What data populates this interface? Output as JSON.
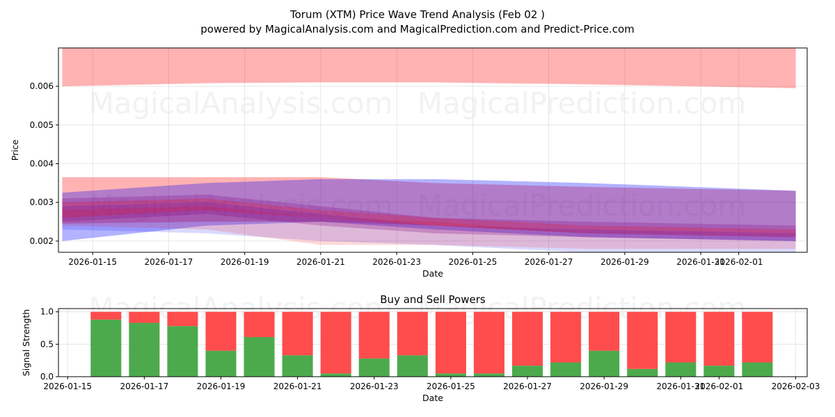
{
  "title_line1": "Torum (XTM) Price Wave Trend Analysis (Feb 02 )",
  "title_line2": "powered by MagicalAnalysis.com and MagicalPrediction.com and Predict-Price.com",
  "watermarks": [
    "MagicalAnalysis.com",
    "MagicalPrediction.com"
  ],
  "chart_data": [
    {
      "type": "area",
      "title": "",
      "xlabel": "Date",
      "ylabel": "Price",
      "xlim": [
        "2026-01-14.1",
        "2026-02-02.8"
      ],
      "ylim": [
        0.00171,
        0.00699
      ],
      "grid": true,
      "yticks": [
        0.002,
        0.003,
        0.004,
        0.005,
        0.006
      ],
      "ytick_labels": [
        "0.002",
        "0.003",
        "0.004",
        "0.005",
        "0.006"
      ],
      "xticks": [
        "2026-01-15",
        "2026-01-17",
        "2026-01-19",
        "2026-01-21",
        "2026-01-23",
        "2026-01-25",
        "2026-01-27",
        "2026-01-29",
        "2026-01-31",
        "2026-02-01"
      ],
      "x": [
        "2026-01-14",
        "2026-01-18",
        "2026-01-21",
        "2026-01-24",
        "2026-01-28",
        "2026-02-02"
      ],
      "bands": [
        {
          "name": "red-upper-band",
          "color": "#ff0000",
          "opacity": 0.3,
          "low": [
            0.006,
            0.00608,
            0.0061,
            0.0061,
            0.00605,
            0.00595
          ],
          "high": [
            0.0072,
            0.0072,
            0.0072,
            0.0072,
            0.0072,
            0.0072
          ]
        },
        {
          "name": "red-wide-band",
          "color": "#ff0000",
          "opacity": 0.3,
          "low": [
            0.00245,
            0.0025,
            0.0025,
            0.0024,
            0.0022,
            0.0021
          ],
          "high": [
            0.00365,
            0.00365,
            0.00365,
            0.0035,
            0.0034,
            0.0033
          ]
        },
        {
          "name": "blue-wide-band",
          "color": "#0000ff",
          "opacity": 0.3,
          "low": [
            0.002,
            0.0024,
            0.0025,
            0.0023,
            0.0021,
            0.002
          ],
          "high": [
            0.00325,
            0.0035,
            0.0036,
            0.0036,
            0.0035,
            0.0033
          ]
        },
        {
          "name": "purple-mid-band",
          "color": "#800080",
          "opacity": 0.25,
          "low": [
            0.0025,
            0.0027,
            0.0024,
            0.0022,
            0.0021,
            0.002
          ],
          "high": [
            0.0031,
            0.0032,
            0.0029,
            0.0026,
            0.0025,
            0.0024
          ]
        },
        {
          "name": "blue-lower-band",
          "color": "#0000ff",
          "opacity": 0.15,
          "low": [
            0.0023,
            0.0022,
            0.002,
            0.0019,
            0.0017,
            0.0017
          ],
          "high": [
            0.0029,
            0.003,
            0.0027,
            0.0024,
            0.0023,
            0.0022
          ]
        },
        {
          "name": "red-lower-band",
          "color": "#ff0000",
          "opacity": 0.15,
          "low": [
            0.0024,
            0.0023,
            0.0019,
            0.0019,
            0.0018,
            0.0018
          ],
          "high": [
            0.0028,
            0.0029,
            0.0026,
            0.0025,
            0.0022,
            0.0021
          ]
        },
        {
          "name": "red-inner-band",
          "color": "#ff0000",
          "opacity": 0.2,
          "low": [
            0.0026,
            0.0028,
            0.0026,
            0.0024,
            0.0022,
            0.0021
          ],
          "high": [
            0.003,
            0.0031,
            0.0028,
            0.0026,
            0.0024,
            0.0023
          ]
        }
      ]
    },
    {
      "type": "bar",
      "title": "Buy and Sell Powers",
      "xlabel": "Date",
      "ylabel": "Signal Strength",
      "xlim": [
        "2026-01-14.76",
        "2026-02-03.3"
      ],
      "ylim": [
        0,
        1.05
      ],
      "grid": true,
      "yticks": [
        0,
        0.5,
        1.0
      ],
      "ytick_labels": [
        "0.0",
        "0.5",
        "1.0"
      ],
      "xticks": [
        "2026-01-15",
        "2026-01-17",
        "2026-01-19",
        "2026-01-21",
        "2026-01-23",
        "2026-01-25",
        "2026-01-27",
        "2026-01-29",
        "2026-01-31",
        "2026-02-01",
        "2026-02-03"
      ],
      "categories": [
        "2026-01-16",
        "2026-01-17",
        "2026-01-18",
        "2026-01-19",
        "2026-01-20",
        "2026-01-21",
        "2026-01-22",
        "2026-01-23",
        "2026-01-24",
        "2026-01-25",
        "2026-01-26",
        "2026-01-27",
        "2026-01-28",
        "2026-01-29",
        "2026-01-30",
        "2026-01-31",
        "2026-02-01",
        "2026-02-02"
      ],
      "series": [
        {
          "name": "Buy",
          "color": "#4caa4c",
          "values": [
            0.88,
            0.83,
            0.78,
            0.4,
            0.61,
            0.33,
            0.05,
            0.28,
            0.33,
            0.05,
            0.05,
            0.17,
            0.22,
            0.4,
            0.12,
            0.22,
            0.17,
            0.22
          ]
        },
        {
          "name": "Sell",
          "color": "#ff4c4c",
          "values": [
            0.12,
            0.17,
            0.22,
            0.6,
            0.39,
            0.67,
            0.95,
            0.72,
            0.67,
            0.95,
            0.95,
            0.83,
            0.78,
            0.6,
            0.88,
            0.78,
            0.83,
            0.78
          ]
        }
      ]
    }
  ]
}
